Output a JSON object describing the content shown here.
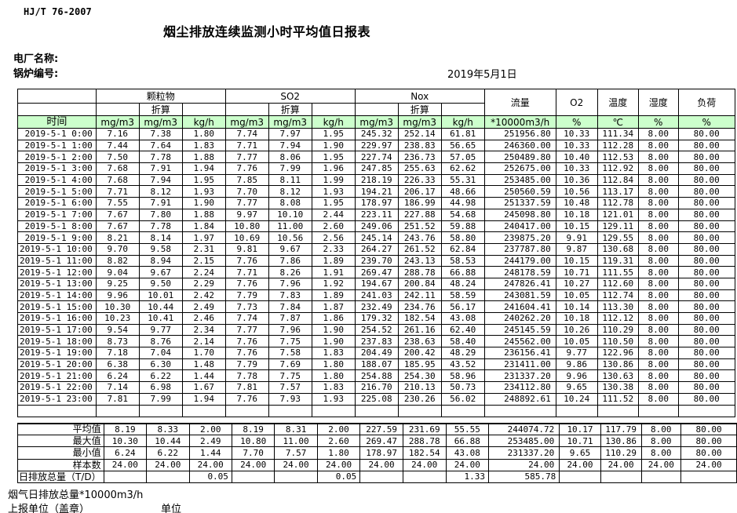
{
  "page": {
    "standard": "HJ/T  76-2007",
    "title": "烟尘排放连续监测小时平均值日报表",
    "plant_name_label": "电厂名称:",
    "boiler_no_label": "锅炉编号:",
    "date": "2019年5月1日"
  },
  "table": {
    "time_header": "时间",
    "group_headers": [
      "颗粒物",
      "SO2",
      "Nox"
    ],
    "converted_label": "折算",
    "flow_header": "流量",
    "o2_header": "O2",
    "temp_header": "温度",
    "humidity_header": "湿度",
    "load_header": "负荷",
    "units": [
      "mg/m3",
      "mg/m3",
      "kg/h",
      "mg/m3",
      "mg/m3",
      "kg/h",
      "mg/m3",
      "mg/m3",
      "kg/h",
      "*10000m3/h",
      "%",
      "℃",
      "%",
      "%"
    ],
    "rows": [
      {
        "time": "2019-5-1 0:00",
        "values": [
          "7.16",
          "7.38",
          "1.80",
          "7.74",
          "7.97",
          "1.95",
          "245.32",
          "252.14",
          "61.81",
          "251956.80",
          "10.33",
          "111.34",
          "8.00",
          "80.00"
        ]
      },
      {
        "time": "2019-5-1 1:00",
        "values": [
          "7.44",
          "7.64",
          "1.83",
          "7.71",
          "7.94",
          "1.90",
          "229.97",
          "238.83",
          "56.65",
          "246360.00",
          "10.33",
          "112.28",
          "8.00",
          "80.00"
        ]
      },
      {
        "time": "2019-5-1 2:00",
        "values": [
          "7.50",
          "7.78",
          "1.88",
          "7.77",
          "8.06",
          "1.95",
          "227.74",
          "236.73",
          "57.05",
          "250489.80",
          "10.40",
          "112.53",
          "8.00",
          "80.00"
        ]
      },
      {
        "time": "2019-5-1 3:00",
        "values": [
          "7.68",
          "7.91",
          "1.94",
          "7.76",
          "7.99",
          "1.96",
          "247.85",
          "255.63",
          "62.62",
          "252675.00",
          "10.33",
          "112.92",
          "8.00",
          "80.00"
        ]
      },
      {
        "time": "2019-5-1 4:00",
        "values": [
          "7.68",
          "7.94",
          "1.95",
          "7.85",
          "8.11",
          "1.99",
          "218.19",
          "226.33",
          "55.31",
          "253485.00",
          "10.36",
          "112.84",
          "8.00",
          "80.00"
        ]
      },
      {
        "time": "2019-5-1 5:00",
        "values": [
          "7.71",
          "8.12",
          "1.93",
          "7.70",
          "8.12",
          "1.93",
          "194.21",
          "206.17",
          "48.66",
          "250560.59",
          "10.56",
          "113.17",
          "8.00",
          "80.00"
        ]
      },
      {
        "time": "2019-5-1 6:00",
        "values": [
          "7.55",
          "7.91",
          "1.90",
          "7.77",
          "8.08",
          "1.95",
          "178.97",
          "186.99",
          "44.98",
          "251337.59",
          "10.48",
          "112.78",
          "8.00",
          "80.00"
        ]
      },
      {
        "time": "2019-5-1 7:00",
        "values": [
          "7.67",
          "7.80",
          "1.88",
          "9.97",
          "10.10",
          "2.44",
          "223.11",
          "227.88",
          "54.68",
          "245098.80",
          "10.18",
          "121.01",
          "8.00",
          "80.00"
        ]
      },
      {
        "time": "2019-5-1 8:00",
        "values": [
          "7.67",
          "7.78",
          "1.84",
          "10.80",
          "11.00",
          "2.60",
          "249.06",
          "251.52",
          "59.88",
          "240417.00",
          "10.15",
          "129.11",
          "8.00",
          "80.00"
        ]
      },
      {
        "time": "2019-5-1 9:00",
        "values": [
          "8.21",
          "8.14",
          "1.97",
          "10.69",
          "10.56",
          "2.56",
          "245.14",
          "243.76",
          "58.80",
          "239875.20",
          "9.91",
          "129.55",
          "8.00",
          "80.00"
        ]
      },
      {
        "time": "2019-5-1 10:00",
        "values": [
          "9.70",
          "9.58",
          "2.31",
          "9.81",
          "9.67",
          "2.33",
          "264.27",
          "261.52",
          "62.84",
          "237787.80",
          "9.87",
          "130.68",
          "8.00",
          "80.00"
        ]
      },
      {
        "time": "2019-5-1 11:00",
        "values": [
          "8.82",
          "8.94",
          "2.15",
          "7.76",
          "7.86",
          "1.89",
          "239.70",
          "243.13",
          "58.53",
          "244179.00",
          "10.15",
          "119.31",
          "8.00",
          "80.00"
        ]
      },
      {
        "time": "2019-5-1 12:00",
        "values": [
          "9.04",
          "9.67",
          "2.24",
          "7.71",
          "8.26",
          "1.91",
          "269.47",
          "288.78",
          "66.88",
          "248178.59",
          "10.71",
          "111.55",
          "8.00",
          "80.00"
        ]
      },
      {
        "time": "2019-5-1 13:00",
        "values": [
          "9.25",
          "9.50",
          "2.29",
          "7.76",
          "7.96",
          "1.92",
          "194.67",
          "200.84",
          "48.24",
          "247826.41",
          "10.27",
          "112.60",
          "8.00",
          "80.00"
        ]
      },
      {
        "time": "2019-5-1 14:00",
        "values": [
          "9.96",
          "10.01",
          "2.42",
          "7.79",
          "7.83",
          "1.89",
          "241.03",
          "242.11",
          "58.59",
          "243081.59",
          "10.05",
          "112.74",
          "8.00",
          "80.00"
        ]
      },
      {
        "time": "2019-5-1 15:00",
        "values": [
          "10.30",
          "10.44",
          "2.49",
          "7.73",
          "7.84",
          "1.87",
          "232.49",
          "234.76",
          "56.17",
          "241604.41",
          "10.14",
          "113.30",
          "8.00",
          "80.00"
        ]
      },
      {
        "time": "2019-5-1 16:00",
        "values": [
          "10.23",
          "10.41",
          "2.46",
          "7.74",
          "7.87",
          "1.86",
          "179.32",
          "182.54",
          "43.08",
          "240262.20",
          "10.18",
          "112.12",
          "8.00",
          "80.00"
        ]
      },
      {
        "time": "2019-5-1 17:00",
        "values": [
          "9.54",
          "9.77",
          "2.34",
          "7.77",
          "7.96",
          "1.90",
          "254.52",
          "261.16",
          "62.40",
          "245145.59",
          "10.26",
          "110.29",
          "8.00",
          "80.00"
        ]
      },
      {
        "time": "2019-5-1 18:00",
        "values": [
          "8.73",
          "8.76",
          "2.14",
          "7.76",
          "7.75",
          "1.90",
          "237.83",
          "238.63",
          "58.40",
          "245562.00",
          "10.05",
          "110.50",
          "8.00",
          "80.00"
        ]
      },
      {
        "time": "2019-5-1 19:00",
        "values": [
          "7.18",
          "7.04",
          "1.70",
          "7.76",
          "7.58",
          "1.83",
          "204.49",
          "200.42",
          "48.29",
          "236156.41",
          "9.77",
          "122.96",
          "8.00",
          "80.00"
        ]
      },
      {
        "time": "2019-5-1 20:00",
        "values": [
          "6.38",
          "6.30",
          "1.48",
          "7.79",
          "7.69",
          "1.80",
          "188.07",
          "185.95",
          "43.52",
          "231411.00",
          "9.86",
          "130.86",
          "8.00",
          "80.00"
        ]
      },
      {
        "time": "2019-5-1 21:00",
        "values": [
          "6.24",
          "6.22",
          "1.44",
          "7.78",
          "7.75",
          "1.80",
          "254.88",
          "254.30",
          "58.96",
          "231337.20",
          "9.96",
          "130.63",
          "8.00",
          "80.00"
        ]
      },
      {
        "time": "2019-5-1 22:00",
        "values": [
          "7.14",
          "6.98",
          "1.67",
          "7.81",
          "7.57",
          "1.83",
          "216.70",
          "210.13",
          "50.73",
          "234112.80",
          "9.65",
          "130.38",
          "8.00",
          "80.00"
        ]
      },
      {
        "time": "2019-5-1 23:00",
        "values": [
          "7.81",
          "7.99",
          "1.94",
          "7.76",
          "7.93",
          "1.93",
          "225.08",
          "230.26",
          "56.02",
          "248892.61",
          "10.24",
          "111.52",
          "8.00",
          "80.00"
        ]
      }
    ]
  },
  "summary": {
    "rows": [
      {
        "label": "平均值",
        "values": [
          "8.19",
          "8.33",
          "2.00",
          "8.19",
          "8.31",
          "2.00",
          "227.59",
          "231.69",
          "55.55",
          "244074.72",
          "10.17",
          "117.79",
          "8.00",
          "80.00"
        ]
      },
      {
        "label": "最大值",
        "values": [
          "10.30",
          "10.44",
          "2.49",
          "10.80",
          "11.00",
          "2.60",
          "269.47",
          "288.78",
          "66.88",
          "253485.00",
          "10.71",
          "130.86",
          "8.00",
          "80.00"
        ]
      },
      {
        "label": "最小值",
        "values": [
          "6.24",
          "6.22",
          "1.44",
          "7.70",
          "7.57",
          "1.80",
          "178.97",
          "182.54",
          "43.08",
          "231337.20",
          "9.65",
          "110.29",
          "8.00",
          "80.00"
        ]
      },
      {
        "label": "样本数",
        "values": [
          "24.00",
          "24.00",
          "24.00",
          "24.00",
          "24.00",
          "24.00",
          "24.00",
          "24.00",
          "24.00",
          "24.00",
          "24.00",
          "24.00",
          "24.00",
          "24.00"
        ]
      },
      {
        "label": "日排放总量（T/D）",
        "values": [
          "",
          "",
          "0.05",
          "",
          "",
          "0.05",
          "",
          "",
          "1.33",
          "585.78",
          "",
          "",
          "",
          ""
        ]
      }
    ]
  },
  "footer": {
    "flue_gas_total_label": "烟气日排放总量*10000m3/h",
    "report_unit_label": "上报单位（盖章）",
    "unit_label": "单位"
  },
  "colors": {
    "header_green": "#ccffcc"
  }
}
